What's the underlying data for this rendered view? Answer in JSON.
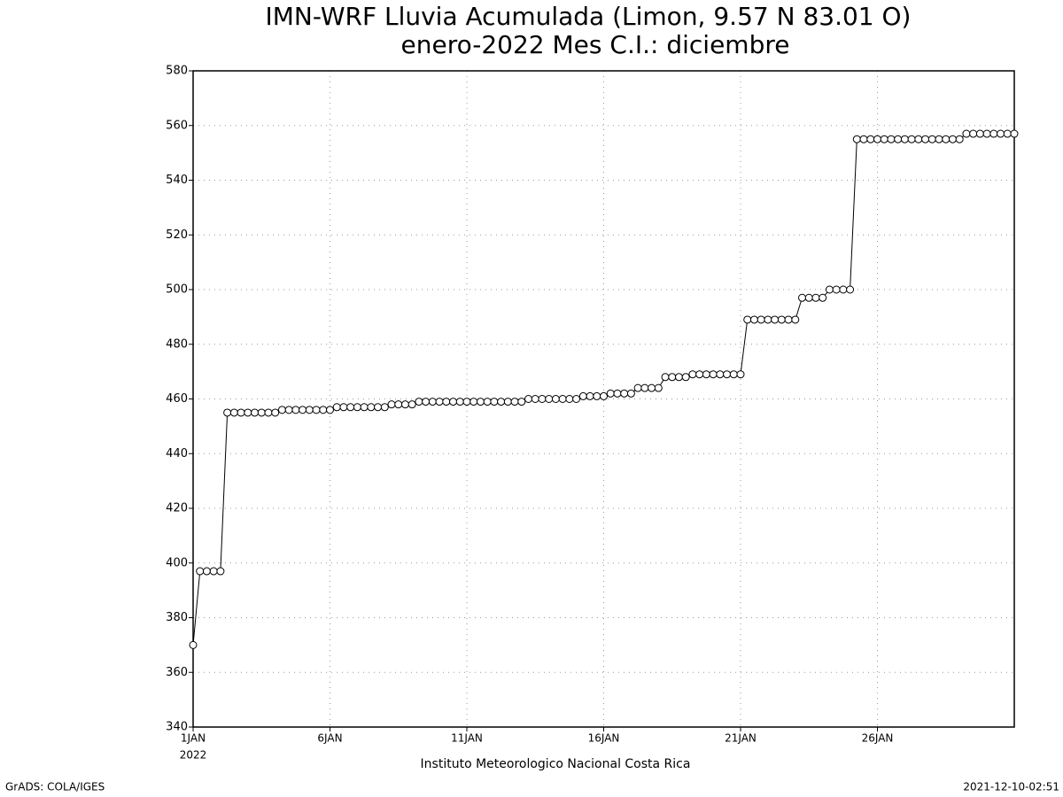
{
  "chart_data": {
    "type": "line",
    "title": "IMN-WRF  Lluvia Acumulada (Limon, 9.57  N 83.01  O)",
    "subtitle": "enero-2022 Mes C.I.: diciembre",
    "xlabel": "Instituto Meteorologico Nacional Costa Rica",
    "year_label": "2022",
    "footer_left": "GrADS: COLA/IGES",
    "footer_right": "2021-12-10-02:51",
    "x": [
      1,
      1.25,
      1.5,
      1.75,
      2,
      2.25,
      2.5,
      2.75,
      3,
      3.25,
      3.5,
      3.75,
      4,
      4.25,
      4.5,
      4.75,
      5,
      5.25,
      5.5,
      5.75,
      6,
      6.25,
      6.5,
      6.75,
      7,
      7.25,
      7.5,
      7.75,
      8,
      8.25,
      8.5,
      8.75,
      9,
      9.25,
      9.5,
      9.75,
      10,
      10.25,
      10.5,
      10.75,
      11,
      11.25,
      11.5,
      11.75,
      12,
      12.25,
      12.5,
      12.75,
      13,
      13.25,
      13.5,
      13.75,
      14,
      14.25,
      14.5,
      14.75,
      15,
      15.25,
      15.5,
      15.75,
      16,
      16.25,
      16.5,
      16.75,
      17,
      17.25,
      17.5,
      17.75,
      18,
      18.25,
      18.5,
      18.75,
      19,
      19.25,
      19.5,
      19.75,
      20,
      20.25,
      20.5,
      20.75,
      21,
      21.25,
      21.5,
      21.75,
      22,
      22.25,
      22.5,
      22.75,
      23,
      23.25,
      23.5,
      23.75,
      24,
      24.25,
      24.5,
      24.75,
      25,
      25.25,
      25.5,
      25.75,
      26,
      26.25,
      26.5,
      26.75,
      27,
      27.25,
      27.5,
      27.75,
      28,
      28.25,
      28.5,
      28.75,
      29,
      29.25,
      29.5,
      29.75,
      30,
      30.25,
      30.5,
      30.75,
      31
    ],
    "series": [
      {
        "name": "Lluvia Acumulada",
        "color": "#000000",
        "values": [
          370,
          397,
          397,
          397,
          397,
          455,
          455,
          455,
          455,
          455,
          455,
          455,
          455,
          456,
          456,
          456,
          456,
          456,
          456,
          456,
          456,
          457,
          457,
          457,
          457,
          457,
          457,
          457,
          457,
          458,
          458,
          458,
          458,
          459,
          459,
          459,
          459,
          459,
          459,
          459,
          459,
          459,
          459,
          459,
          459,
          459,
          459,
          459,
          459,
          460,
          460,
          460,
          460,
          460,
          460,
          460,
          460,
          461,
          461,
          461,
          461,
          462,
          462,
          462,
          462,
          464,
          464,
          464,
          464,
          468,
          468,
          468,
          468,
          469,
          469,
          469,
          469,
          469,
          469,
          469,
          469,
          489,
          489,
          489,
          489,
          489,
          489,
          489,
          489,
          497,
          497,
          497,
          497,
          500,
          500,
          500,
          500,
          555,
          555,
          555,
          555,
          555,
          555,
          555,
          555,
          555,
          555,
          555,
          555,
          555,
          555,
          555,
          555,
          557,
          557,
          557,
          557,
          557,
          557,
          557,
          557
        ]
      }
    ],
    "xlim": [
      1,
      31
    ],
    "xticks": [
      {
        "value": 1,
        "label": "1JAN"
      },
      {
        "value": 6,
        "label": "6JAN"
      },
      {
        "value": 11,
        "label": "11JAN"
      },
      {
        "value": 16,
        "label": "16JAN"
      },
      {
        "value": 21,
        "label": "21JAN"
      },
      {
        "value": 26,
        "label": "26JAN"
      }
    ],
    "ylim": [
      340,
      580
    ],
    "yticks": [
      340,
      360,
      380,
      400,
      420,
      440,
      460,
      480,
      500,
      520,
      540,
      560,
      580
    ],
    "grid": true
  }
}
